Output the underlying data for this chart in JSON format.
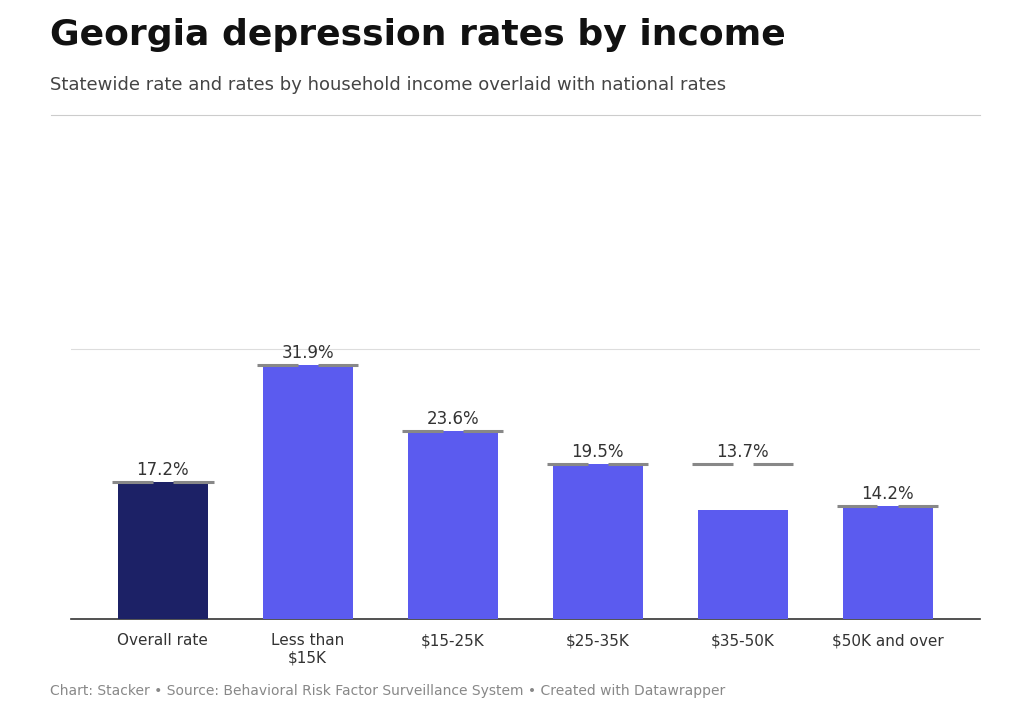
{
  "title": "Georgia depression rates by income",
  "subtitle": "Statewide rate and rates by household income overlaid with national rates",
  "caption": "Chart: Stacker • Source: Behavioral Risk Factor Surveillance System • Created with Datawrapper",
  "categories": [
    "Overall rate",
    "Less than\n$15K",
    "$15-25K",
    "$25-35K",
    "$35-50K",
    "$50K and over"
  ],
  "values": [
    17.2,
    31.9,
    23.6,
    19.5,
    13.7,
    14.2
  ],
  "bar_colors": [
    "#1c2166",
    "#5b5bef",
    "#5b5bef",
    "#5b5bef",
    "#5b5bef",
    "#5b5bef"
  ],
  "national_line_vals": [
    17.2,
    31.9,
    23.6,
    19.5,
    19.5,
    14.2
  ],
  "national_line_color": "#888888",
  "label_texts": [
    "17.2%",
    "31.9%",
    "23.6%",
    "19.5%",
    "13.7%",
    "14.2%"
  ],
  "background_color": "#ffffff",
  "title_fontsize": 26,
  "subtitle_fontsize": 13,
  "caption_fontsize": 10,
  "label_fontsize": 12,
  "tick_fontsize": 11,
  "ylim": [
    0,
    38
  ],
  "bar_width": 0.62
}
